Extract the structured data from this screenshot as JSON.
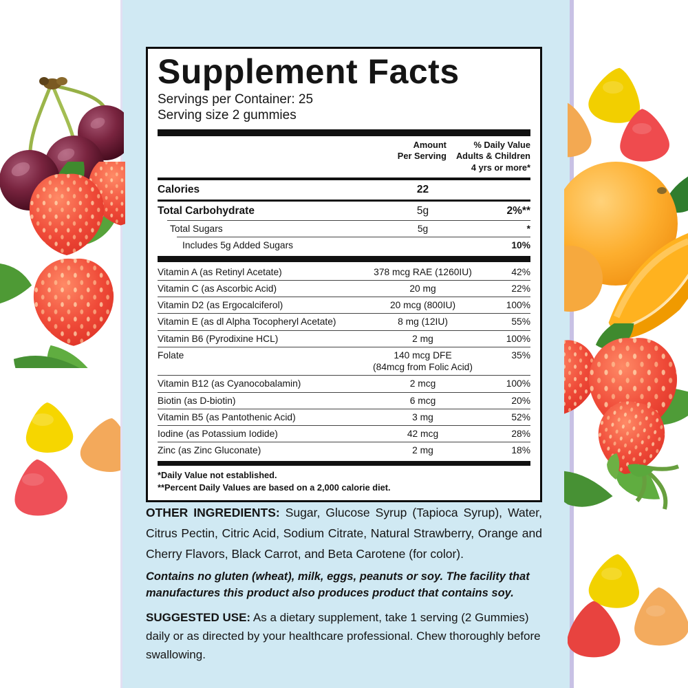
{
  "panel": {
    "title": "Supplement Facts",
    "servings_per_container": "Servings per Container: 25",
    "serving_size": "Serving size 2 gummies",
    "header": {
      "amount": "Amount\nPer Serving",
      "daily_value": "% Daily Value\nAdults & Children\n4 yrs or more*"
    },
    "rows": [
      {
        "name": "Calories",
        "amount": "22",
        "dv": "",
        "class": "lg bold-name bold-amt",
        "sep": "med"
      },
      {
        "name": "Total Carbohydrate",
        "amount": "5g",
        "dv": "2%**",
        "class": "lg bold-name bold-dv",
        "sep": "thin ind1"
      },
      {
        "name": "Total Sugars",
        "amount": "5g",
        "dv": "*",
        "class": "indent1 bold-dv",
        "sep": "thin ind2"
      },
      {
        "name": "Includes 5g Added Sugars",
        "amount": "",
        "dv": "10%",
        "class": "indent2 bold-dv",
        "sep": "thick8"
      },
      {
        "name": "Vitamin A (as Retinyl Acetate)",
        "amount": "378 mcg RAE (1260IU)",
        "dv": "42%",
        "class": "",
        "sep": "thin"
      },
      {
        "name": "Vitamin C (as Ascorbic Acid)",
        "amount": "20 mg",
        "dv": "22%",
        "class": "",
        "sep": "thin"
      },
      {
        "name": "Vitamin D2 (as Ergocalciferol)",
        "amount": "20 mcg (800IU)",
        "dv": "100%",
        "class": "",
        "sep": "thin"
      },
      {
        "name": "Vitamin E (as dl Alpha Tocopheryl Acetate)",
        "amount": "8 mg (12IU)",
        "dv": "55%",
        "class": "",
        "sep": "thin"
      },
      {
        "name": "Vitamin B6 (Pyrodixine HCL)",
        "amount": "2 mg",
        "dv": "100%",
        "class": "",
        "sep": "thin"
      },
      {
        "name": "Folate",
        "amount": "140 mcg DFE\n(84mcg from Folic Acid)",
        "dv": "35%",
        "class": "",
        "sep": "thin"
      },
      {
        "name": "Vitamin B12 (as Cyanocobalamin)",
        "amount": "2 mcg",
        "dv": "100%",
        "class": "",
        "sep": "thin"
      },
      {
        "name": "Biotin (as D-biotin)",
        "amount": "6 mcg",
        "dv": "20%",
        "class": "",
        "sep": "thin"
      },
      {
        "name": "Vitamin B5 (as Pantothenic Acid)",
        "amount": "3 mg",
        "dv": "52%",
        "class": "",
        "sep": "thin"
      },
      {
        "name": "Iodine (as Potassium Iodide)",
        "amount": "42 mcg",
        "dv": "28%",
        "class": "",
        "sep": "thin"
      },
      {
        "name": "Zinc (as Zinc Gluconate)",
        "amount": "2 mg",
        "dv": "18%",
        "class": "",
        "sep": "thick6"
      }
    ],
    "footnotes": [
      "*Daily Value not established.",
      "**Percent Daily Values are based on a 2,000 calorie diet."
    ]
  },
  "sections": {
    "other_ingredients_label": "OTHER INGREDIENTS:",
    "other_ingredients_text": " Sugar, Glucose Syrup (Tapioca Syrup), Water, Citrus Pectin, Citric Acid, Sodium Citrate, Natural Strawberry, Orange and Cherry Flavors, Black Carrot, and Beta Carotene (for color).",
    "contains_text": "Contains no gluten (wheat), milk, eggs, peanuts or soy. The facility that manufactures this product also produces product that contains soy.",
    "suggested_use_label": "SUGGESTED USE:",
    "suggested_use_text": " As a dietary supplement, take 1 serving (2 Gummies) daily or as directed by your healthcare professional. Chew thoroughly before swallowing."
  },
  "colors": {
    "panel_blue": "#d0e9f3",
    "edge_lavender": "#c8c1e5",
    "rule_black": "#111111",
    "cherry": "#5c1530",
    "strawberry": "#e63a30",
    "leaf_green": "#4f9c38",
    "orange_fruit": "#f7a51e",
    "gummy_yellow": "#f6d600",
    "gummy_orange": "#f3a95b",
    "gummy_red": "#ee4d50"
  },
  "decorations": [
    "cherries-image",
    "strawberries-left-image",
    "gummies-left-image",
    "gummies-top-right-image",
    "orange-image",
    "strawberries-right-image",
    "gummies-bottom-right-image"
  ]
}
